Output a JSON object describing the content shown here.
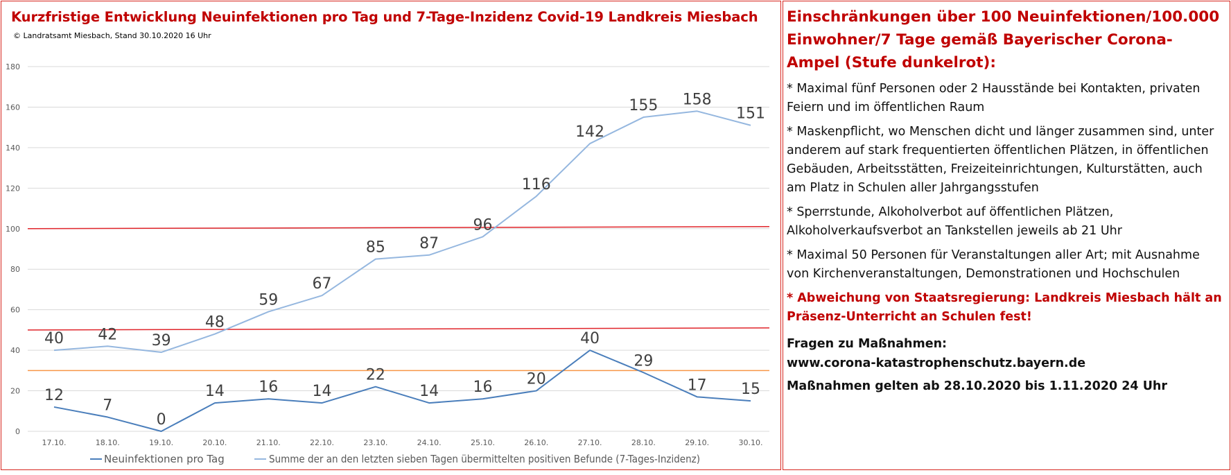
{
  "chart_panel": {
    "title": "Kurzfristige Entwicklung Neuinfektionen pro Tag und 7-Tage-Inzidenz Covid-19 Landkreis Miesbach",
    "subtitle": "© Landratsamt Miesbach, Stand 30.10.2020 16 Uhr"
  },
  "chart_data": {
    "type": "line",
    "title": "Kurzfristige Entwicklung Neuinfektionen pro Tag und 7-Tage-Inzidenz Covid-19 Landkreis Miesbach",
    "x": [
      "17.10.",
      "18.10.",
      "19.10.",
      "20.10.",
      "21.10.",
      "22.10.",
      "23.10.",
      "24.10.",
      "25.10.",
      "26.10.",
      "27.10.",
      "28.10.",
      "29.10.",
      "30.10."
    ],
    "ylim": [
      0,
      180
    ],
    "yticks": [
      0,
      20,
      40,
      60,
      80,
      100,
      120,
      140,
      160,
      180
    ],
    "grid": true,
    "legend_position": "bottom",
    "series": [
      {
        "name": "Neuinfektionen pro Tag",
        "color": "#4a7ebb",
        "values": [
          12,
          7,
          0,
          14,
          16,
          14,
          22,
          14,
          16,
          20,
          40,
          29,
          17,
          15
        ]
      },
      {
        "name": "Summe der an den letzten sieben Tagen übermittelten positiven Befunde (7-Tages-Inzidenz)",
        "color": "#95b7df",
        "values": [
          40,
          42,
          39,
          48,
          59,
          67,
          85,
          87,
          96,
          116,
          142,
          155,
          158,
          151
        ]
      }
    ],
    "reference_lines": [
      {
        "value": 100,
        "color": "#e0242a"
      },
      {
        "value": 50,
        "color": "#e0242a"
      },
      {
        "value": 30,
        "color": "#f79646"
      }
    ]
  },
  "text_panel": {
    "heading": "Einschränkungen über 100 Neuinfektionen/100.000 Einwohner/7 Tage gemäß Bayerischer Corona-Ampel (Stufe dunkelrot):",
    "rules": [
      "* Maximal fünf Personen oder 2 Hausstände bei Kontakten, privaten Feiern und im öffentlichen Raum",
      "* Maskenpflicht, wo Menschen dicht und länger zusammen sind, unter anderem auf stark frequentierten öffentlichen Plätzen, in öffentlichen Gebäuden, Arbeitsstätten, Freizeiteinrichtungen, Kulturstätten, auch am Platz in Schulen aller Jahrgangsstufen",
      "* Sperrstunde, Alkoholverbot auf öffentlichen Plätzen, Alkoholverkaufsverbot an Tankstellen jeweils ab 21 Uhr",
      "* Maximal 50 Personen für Veranstaltungen aller Art; mit Ausnahme von Kirchenveranstaltungen, Demonstrationen und Hochschulen"
    ],
    "exception": "* Abweichung von Staatsregierung: Landkreis Miesbach hält an Präsenz-Unterricht an Schulen fest!",
    "questions_label": "Fragen zu Maßnahmen:",
    "questions_url": "www.corona-katastrophenschutz.bayern.de",
    "validity": "Maßnahmen gelten ab 28.10.2020 bis 1.11.2020 24 Uhr"
  }
}
